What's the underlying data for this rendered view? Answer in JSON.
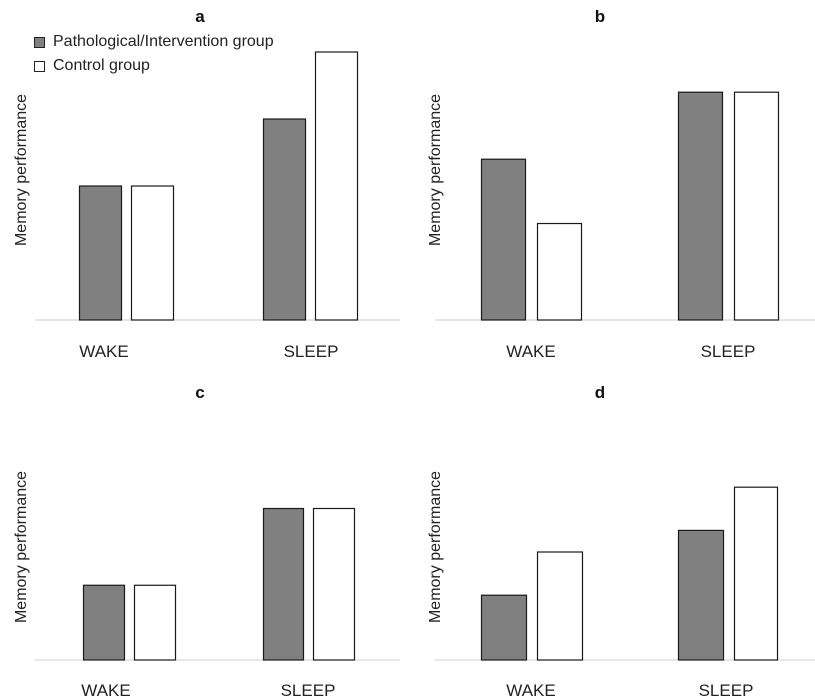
{
  "colors": {
    "pathological": "#808080",
    "control": "#ffffff",
    "stroke": "#1a1a1a",
    "axis": "#cfcfcf"
  },
  "legend": {
    "pathological": "Pathological/Intervention group",
    "control": "Control group"
  },
  "chart_data": [
    {
      "type": "bar",
      "title": "a",
      "ylabel": "Memory performance",
      "xlabel": "",
      "categories": [
        "WAKE",
        "SLEEP"
      ],
      "ylim": [
        0,
        100
      ],
      "series": [
        {
          "name": "Pathological/Intervention group",
          "values": [
            50,
            75
          ]
        },
        {
          "name": "Control group",
          "values": [
            50,
            100
          ]
        }
      ]
    },
    {
      "type": "bar",
      "title": "b",
      "ylabel": "Memory performance",
      "xlabel": "",
      "categories": [
        "WAKE",
        "SLEEP"
      ],
      "ylim": [
        0,
        100
      ],
      "series": [
        {
          "name": "Pathological/Intervention group",
          "values": [
            60,
            85
          ]
        },
        {
          "name": "Control group",
          "values": [
            36,
            85
          ]
        }
      ]
    },
    {
      "type": "bar",
      "title": "c",
      "ylabel": "Memory performance",
      "xlabel": "",
      "categories": [
        "WAKE",
        "SLEEP"
      ],
      "ylim": [
        0,
        100
      ],
      "series": [
        {
          "name": "Pathological/Intervention group",
          "values": [
            37,
            75
          ]
        },
        {
          "name": "Control group",
          "values": [
            37,
            75
          ]
        }
      ]
    },
    {
      "type": "bar",
      "title": "d",
      "ylabel": "Memory performance",
      "xlabel": "",
      "categories": [
        "WAKE",
        "SLEEP"
      ],
      "ylim": [
        0,
        100
      ],
      "series": [
        {
          "name": "Pathological/Intervention group",
          "values": [
            30,
            60
          ]
        },
        {
          "name": "Control group",
          "values": [
            50,
            80
          ]
        }
      ]
    }
  ]
}
